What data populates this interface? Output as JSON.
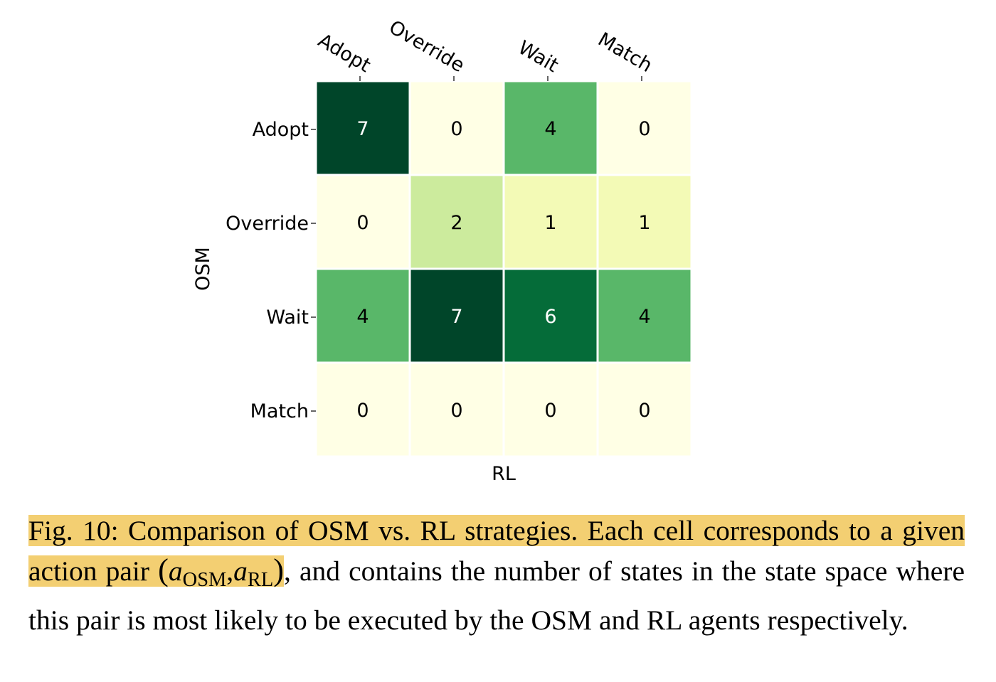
{
  "chart_data": {
    "type": "heatmap",
    "xlabel": "RL",
    "ylabel": "OSM",
    "x_categories": [
      "Adopt",
      "Override",
      "Wait",
      "Match"
    ],
    "y_categories": [
      "Adopt",
      "Override",
      "Wait",
      "Match"
    ],
    "values": [
      [
        7,
        0,
        4,
        0
      ],
      [
        0,
        2,
        1,
        1
      ],
      [
        4,
        7,
        6,
        4
      ],
      [
        0,
        0,
        0,
        0
      ]
    ],
    "colormap": "YlGn",
    "vmin": 0,
    "vmax": 7,
    "colors": {
      "low": "#ffffe5",
      "high": "#004529",
      "text_light": "#ffffff",
      "text_dark": "#000000"
    }
  },
  "caption": {
    "label": "Fig. 10:",
    "highlight_text": "Comparison of OSM vs. RL strategies. Each cell corresponds to a given action pair",
    "pair_open": "(",
    "pair_a1": "a",
    "pair_sub1": "OSM",
    "pair_comma": ",",
    "pair_a2": "a",
    "pair_sub2": "RL",
    "pair_close": ")",
    "rest_text": ", and contains the number of states in the state space where this pair is most likely to be executed by the OSM and RL agents respectively.",
    "highlight_color": "#f3cf72"
  }
}
